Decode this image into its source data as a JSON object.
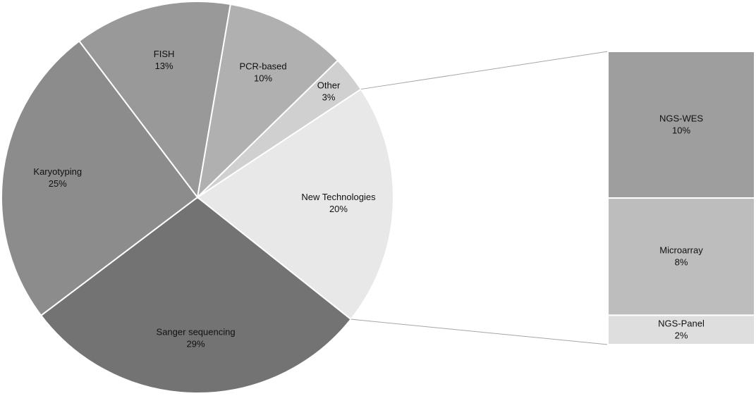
{
  "chart_data": {
    "type": "pie",
    "subtype": "bar-of-pie",
    "slices": [
      {
        "label": "New Technologies",
        "value": 20,
        "value_label": "20%",
        "color": "#e8e8e8"
      },
      {
        "label": "Sanger sequencing",
        "value": 29,
        "value_label": "29%",
        "color": "#737373"
      },
      {
        "label": "Karyotyping",
        "value": 25,
        "value_label": "25%",
        "color": "#8c8c8c"
      },
      {
        "label": "FISH",
        "value": 13,
        "value_label": "13%",
        "color": "#999999"
      },
      {
        "label": "PCR-based",
        "value": 10,
        "value_label": "10%",
        "color": "#b0b0b0"
      },
      {
        "label": "Other",
        "value": 3,
        "value_label": "3%",
        "color": "#d0d0d0"
      }
    ],
    "breakout": {
      "parent": "New Technologies",
      "segments": [
        {
          "label": "NGS-WES",
          "value": 10,
          "value_label": "10%",
          "color": "#9e9e9e"
        },
        {
          "label": "Microarray",
          "value": 8,
          "value_label": "8%",
          "color": "#bdbdbd"
        },
        {
          "label": "NGS-Panel",
          "value": 2,
          "value_label": "2%",
          "color": "#dedede"
        }
      ]
    },
    "colors": {
      "slice_border": "#ffffff",
      "connector": "#a6a6a6"
    }
  }
}
